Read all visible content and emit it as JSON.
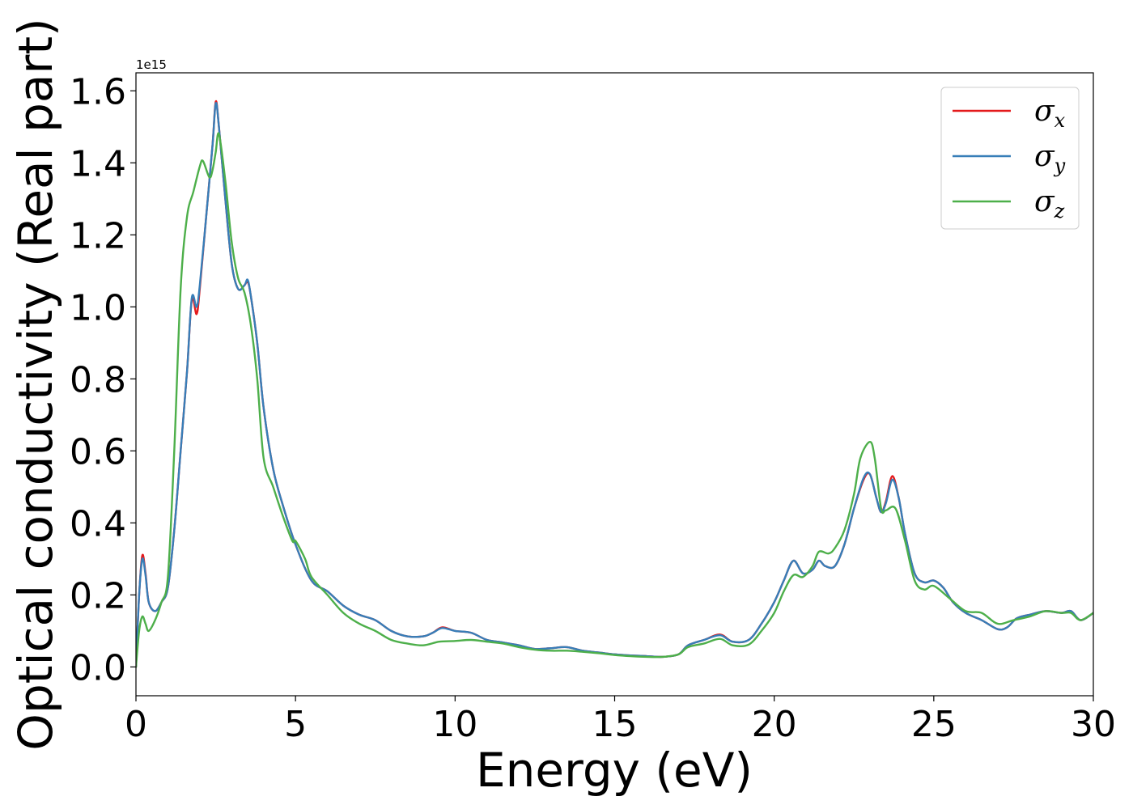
{
  "chart_data": {
    "type": "line",
    "title": "",
    "xlabel": "Energy (eV)",
    "ylabel": "Optical conductivity (Real part)",
    "y_offset_text": "1e15",
    "y_multiplier": 1000000000000000.0,
    "xlim": [
      0,
      30
    ],
    "ylim": [
      -0.08,
      1.65
    ],
    "x_ticks": [
      0,
      5,
      10,
      15,
      20,
      25,
      30
    ],
    "x_tick_labels": [
      "0",
      "5",
      "10",
      "15",
      "20",
      "25",
      "30"
    ],
    "y_ticks": [
      0.0,
      0.2,
      0.4,
      0.6,
      0.8,
      1.0,
      1.2,
      1.4,
      1.6
    ],
    "y_tick_labels": [
      "0.0",
      "0.2",
      "0.4",
      "0.6",
      "0.8",
      "1.0",
      "1.2",
      "1.4",
      "1.6"
    ],
    "grid": false,
    "legend_position": "top-right",
    "series": [
      {
        "name": "σx",
        "symbol": "σ",
        "subscript": "x",
        "color": "#e41a1c",
        "points": [
          [
            0.0,
            0.0
          ],
          [
            0.1,
            0.2
          ],
          [
            0.2,
            0.31
          ],
          [
            0.3,
            0.26
          ],
          [
            0.4,
            0.18
          ],
          [
            0.6,
            0.155
          ],
          [
            0.8,
            0.18
          ],
          [
            1.0,
            0.22
          ],
          [
            1.2,
            0.38
          ],
          [
            1.4,
            0.6
          ],
          [
            1.6,
            0.82
          ],
          [
            1.75,
            1.02
          ],
          [
            1.9,
            0.98
          ],
          [
            2.0,
            1.05
          ],
          [
            2.2,
            1.25
          ],
          [
            2.4,
            1.45
          ],
          [
            2.5,
            1.57
          ],
          [
            2.6,
            1.5
          ],
          [
            2.8,
            1.3
          ],
          [
            3.0,
            1.12
          ],
          [
            3.2,
            1.05
          ],
          [
            3.4,
            1.06
          ],
          [
            3.5,
            1.07
          ],
          [
            3.6,
            1.03
          ],
          [
            3.8,
            0.9
          ],
          [
            4.0,
            0.72
          ],
          [
            4.3,
            0.55
          ],
          [
            4.6,
            0.45
          ],
          [
            5.0,
            0.34
          ],
          [
            5.5,
            0.24
          ],
          [
            6.0,
            0.21
          ],
          [
            6.5,
            0.17
          ],
          [
            7.0,
            0.145
          ],
          [
            7.5,
            0.13
          ],
          [
            8.0,
            0.1
          ],
          [
            8.5,
            0.085
          ],
          [
            9.0,
            0.085
          ],
          [
            9.3,
            0.095
          ],
          [
            9.6,
            0.11
          ],
          [
            10.0,
            0.1
          ],
          [
            10.5,
            0.095
          ],
          [
            11.0,
            0.075
          ],
          [
            11.5,
            0.068
          ],
          [
            12.0,
            0.06
          ],
          [
            12.5,
            0.05
          ],
          [
            13.0,
            0.052
          ],
          [
            13.5,
            0.055
          ],
          [
            14.0,
            0.045
          ],
          [
            14.5,
            0.04
          ],
          [
            15.0,
            0.035
          ],
          [
            15.5,
            0.032
          ],
          [
            16.0,
            0.03
          ],
          [
            16.5,
            0.028
          ],
          [
            17.0,
            0.035
          ],
          [
            17.3,
            0.06
          ],
          [
            17.8,
            0.075
          ],
          [
            18.3,
            0.09
          ],
          [
            18.7,
            0.07
          ],
          [
            19.2,
            0.075
          ],
          [
            19.6,
            0.12
          ],
          [
            20.0,
            0.18
          ],
          [
            20.3,
            0.24
          ],
          [
            20.6,
            0.295
          ],
          [
            20.9,
            0.26
          ],
          [
            21.2,
            0.27
          ],
          [
            21.4,
            0.295
          ],
          [
            21.6,
            0.28
          ],
          [
            21.9,
            0.28
          ],
          [
            22.2,
            0.34
          ],
          [
            22.5,
            0.44
          ],
          [
            22.8,
            0.52
          ],
          [
            23.0,
            0.535
          ],
          [
            23.2,
            0.47
          ],
          [
            23.35,
            0.43
          ],
          [
            23.5,
            0.46
          ],
          [
            23.7,
            0.53
          ],
          [
            23.9,
            0.47
          ],
          [
            24.1,
            0.37
          ],
          [
            24.4,
            0.26
          ],
          [
            24.7,
            0.235
          ],
          [
            25.0,
            0.24
          ],
          [
            25.3,
            0.22
          ],
          [
            25.6,
            0.18
          ],
          [
            26.0,
            0.15
          ],
          [
            26.5,
            0.13
          ],
          [
            27.0,
            0.105
          ],
          [
            27.3,
            0.11
          ],
          [
            27.6,
            0.135
          ],
          [
            28.0,
            0.145
          ],
          [
            28.5,
            0.155
          ],
          [
            29.0,
            0.15
          ],
          [
            29.3,
            0.155
          ],
          [
            29.6,
            0.13
          ],
          [
            30.0,
            0.15
          ]
        ]
      },
      {
        "name": "σy",
        "symbol": "σ",
        "subscript": "y",
        "color": "#377eb8",
        "points": [
          [
            0.0,
            0.0
          ],
          [
            0.1,
            0.2
          ],
          [
            0.2,
            0.3
          ],
          [
            0.3,
            0.255
          ],
          [
            0.4,
            0.18
          ],
          [
            0.6,
            0.155
          ],
          [
            0.8,
            0.18
          ],
          [
            1.0,
            0.22
          ],
          [
            1.2,
            0.38
          ],
          [
            1.4,
            0.6
          ],
          [
            1.6,
            0.82
          ],
          [
            1.75,
            1.025
          ],
          [
            1.9,
            1.0
          ],
          [
            2.0,
            1.06
          ],
          [
            2.2,
            1.25
          ],
          [
            2.4,
            1.45
          ],
          [
            2.5,
            1.565
          ],
          [
            2.6,
            1.5
          ],
          [
            2.8,
            1.3
          ],
          [
            3.0,
            1.12
          ],
          [
            3.2,
            1.05
          ],
          [
            3.4,
            1.06
          ],
          [
            3.5,
            1.075
          ],
          [
            3.6,
            1.03
          ],
          [
            3.8,
            0.9
          ],
          [
            4.0,
            0.72
          ],
          [
            4.3,
            0.55
          ],
          [
            4.6,
            0.45
          ],
          [
            5.0,
            0.34
          ],
          [
            5.5,
            0.24
          ],
          [
            6.0,
            0.21
          ],
          [
            6.5,
            0.17
          ],
          [
            7.0,
            0.145
          ],
          [
            7.5,
            0.13
          ],
          [
            8.0,
            0.1
          ],
          [
            8.5,
            0.085
          ],
          [
            9.0,
            0.085
          ],
          [
            9.3,
            0.095
          ],
          [
            9.6,
            0.108
          ],
          [
            10.0,
            0.1
          ],
          [
            10.5,
            0.095
          ],
          [
            11.0,
            0.075
          ],
          [
            11.5,
            0.068
          ],
          [
            12.0,
            0.06
          ],
          [
            12.5,
            0.05
          ],
          [
            13.0,
            0.052
          ],
          [
            13.5,
            0.055
          ],
          [
            14.0,
            0.045
          ],
          [
            14.5,
            0.04
          ],
          [
            15.0,
            0.035
          ],
          [
            15.5,
            0.032
          ],
          [
            16.0,
            0.03
          ],
          [
            16.5,
            0.028
          ],
          [
            17.0,
            0.035
          ],
          [
            17.3,
            0.06
          ],
          [
            17.8,
            0.075
          ],
          [
            18.3,
            0.088
          ],
          [
            18.7,
            0.07
          ],
          [
            19.2,
            0.075
          ],
          [
            19.6,
            0.12
          ],
          [
            20.0,
            0.18
          ],
          [
            20.3,
            0.24
          ],
          [
            20.6,
            0.295
          ],
          [
            20.9,
            0.26
          ],
          [
            21.2,
            0.27
          ],
          [
            21.4,
            0.295
          ],
          [
            21.6,
            0.28
          ],
          [
            21.9,
            0.28
          ],
          [
            22.2,
            0.34
          ],
          [
            22.5,
            0.44
          ],
          [
            22.8,
            0.525
          ],
          [
            23.0,
            0.535
          ],
          [
            23.2,
            0.47
          ],
          [
            23.35,
            0.43
          ],
          [
            23.5,
            0.455
          ],
          [
            23.7,
            0.52
          ],
          [
            23.9,
            0.47
          ],
          [
            24.1,
            0.37
          ],
          [
            24.4,
            0.26
          ],
          [
            24.7,
            0.235
          ],
          [
            25.0,
            0.24
          ],
          [
            25.3,
            0.22
          ],
          [
            25.6,
            0.18
          ],
          [
            26.0,
            0.15
          ],
          [
            26.5,
            0.13
          ],
          [
            27.0,
            0.105
          ],
          [
            27.3,
            0.11
          ],
          [
            27.6,
            0.135
          ],
          [
            28.0,
            0.145
          ],
          [
            28.5,
            0.155
          ],
          [
            29.0,
            0.15
          ],
          [
            29.3,
            0.155
          ],
          [
            29.6,
            0.13
          ],
          [
            30.0,
            0.15
          ]
        ]
      },
      {
        "name": "σz",
        "symbol": "σ",
        "subscript": "z",
        "color": "#4daf4a",
        "points": [
          [
            0.0,
            0.0
          ],
          [
            0.1,
            0.1
          ],
          [
            0.2,
            0.14
          ],
          [
            0.3,
            0.12
          ],
          [
            0.4,
            0.1
          ],
          [
            0.6,
            0.13
          ],
          [
            0.8,
            0.18
          ],
          [
            1.0,
            0.25
          ],
          [
            1.2,
            0.6
          ],
          [
            1.4,
            1.05
          ],
          [
            1.6,
            1.25
          ],
          [
            1.8,
            1.32
          ],
          [
            2.0,
            1.39
          ],
          [
            2.1,
            1.405
          ],
          [
            2.3,
            1.36
          ],
          [
            2.4,
            1.38
          ],
          [
            2.5,
            1.43
          ],
          [
            2.6,
            1.48
          ],
          [
            2.8,
            1.35
          ],
          [
            3.0,
            1.18
          ],
          [
            3.2,
            1.08
          ],
          [
            3.4,
            1.04
          ],
          [
            3.6,
            0.95
          ],
          [
            3.8,
            0.8
          ],
          [
            4.0,
            0.58
          ],
          [
            4.3,
            0.5
          ],
          [
            4.6,
            0.42
          ],
          [
            4.9,
            0.35
          ],
          [
            5.0,
            0.35
          ],
          [
            5.3,
            0.3
          ],
          [
            5.5,
            0.25
          ],
          [
            6.0,
            0.2
          ],
          [
            6.5,
            0.15
          ],
          [
            7.0,
            0.12
          ],
          [
            7.5,
            0.1
          ],
          [
            8.0,
            0.075
          ],
          [
            8.5,
            0.065
          ],
          [
            9.0,
            0.06
          ],
          [
            9.5,
            0.07
          ],
          [
            10.0,
            0.072
          ],
          [
            10.5,
            0.075
          ],
          [
            11.0,
            0.07
          ],
          [
            11.5,
            0.065
          ],
          [
            12.0,
            0.055
          ],
          [
            12.5,
            0.048
          ],
          [
            13.0,
            0.045
          ],
          [
            13.5,
            0.045
          ],
          [
            14.0,
            0.042
          ],
          [
            14.5,
            0.038
          ],
          [
            15.0,
            0.033
          ],
          [
            15.5,
            0.03
          ],
          [
            16.0,
            0.028
          ],
          [
            16.5,
            0.028
          ],
          [
            17.0,
            0.035
          ],
          [
            17.3,
            0.055
          ],
          [
            17.8,
            0.065
          ],
          [
            18.3,
            0.078
          ],
          [
            18.7,
            0.06
          ],
          [
            19.2,
            0.062
          ],
          [
            19.6,
            0.1
          ],
          [
            20.0,
            0.15
          ],
          [
            20.3,
            0.21
          ],
          [
            20.6,
            0.255
          ],
          [
            20.9,
            0.25
          ],
          [
            21.2,
            0.28
          ],
          [
            21.4,
            0.32
          ],
          [
            21.7,
            0.315
          ],
          [
            21.9,
            0.33
          ],
          [
            22.2,
            0.38
          ],
          [
            22.5,
            0.48
          ],
          [
            22.7,
            0.58
          ],
          [
            23.0,
            0.625
          ],
          [
            23.15,
            0.58
          ],
          [
            23.35,
            0.44
          ],
          [
            23.5,
            0.435
          ],
          [
            23.8,
            0.44
          ],
          [
            24.1,
            0.35
          ],
          [
            24.4,
            0.24
          ],
          [
            24.7,
            0.215
          ],
          [
            25.0,
            0.225
          ],
          [
            25.5,
            0.19
          ],
          [
            26.0,
            0.155
          ],
          [
            26.5,
            0.15
          ],
          [
            27.0,
            0.12
          ],
          [
            27.5,
            0.13
          ],
          [
            28.0,
            0.14
          ],
          [
            28.5,
            0.155
          ],
          [
            29.0,
            0.15
          ],
          [
            29.3,
            0.15
          ],
          [
            29.6,
            0.13
          ],
          [
            30.0,
            0.15
          ]
        ]
      }
    ]
  }
}
